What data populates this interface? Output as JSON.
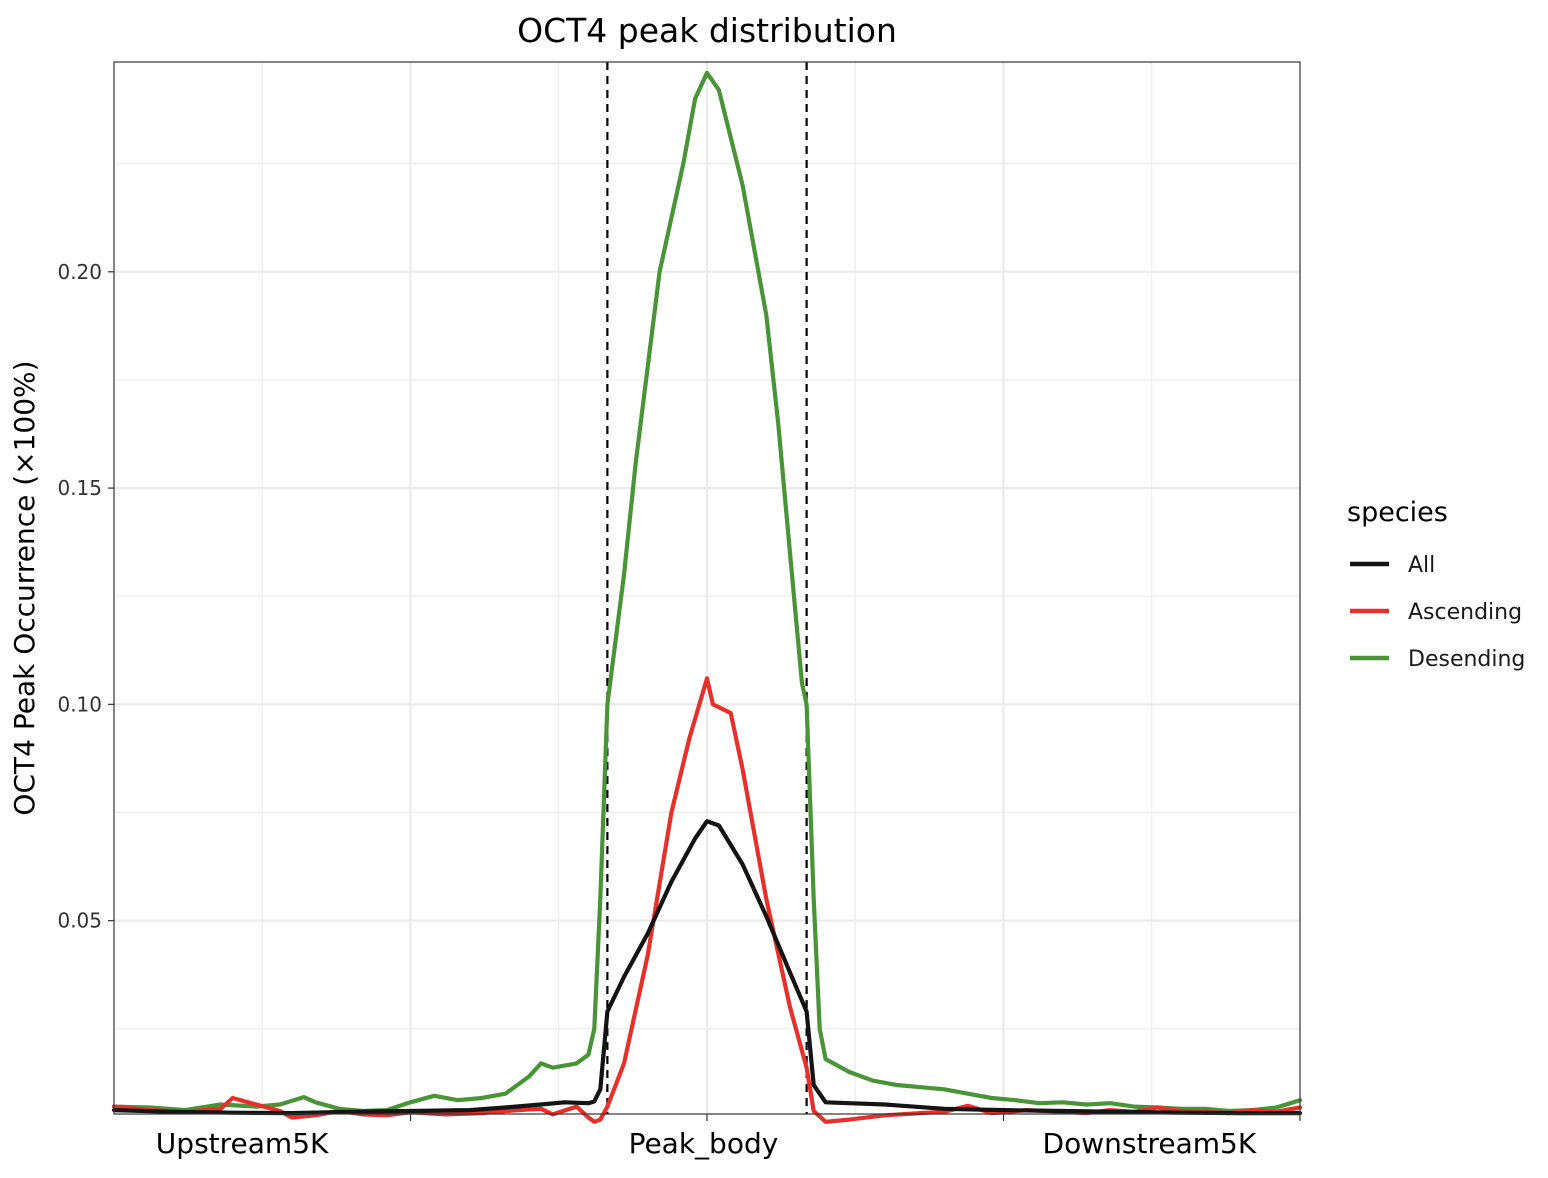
{
  "colors": {
    "all": "#141414",
    "ascending": "#e8302b",
    "desending": "#4a9438",
    "grid": "#ebebeb",
    "panel_border": "#333333"
  },
  "chart_data": {
    "type": "line",
    "title": "OCT4 peak distribution",
    "xlabel": "",
    "ylabel": "OCT4  Peak Occurrence (×100%)",
    "xlim": [
      0,
      1
    ],
    "ylim": [
      0.0053,
      0.2485
    ],
    "y_ticks": [
      0.05,
      0.1,
      0.15,
      0.2
    ],
    "y_tick_labels": [
      "0.05",
      "0.10",
      "0.15",
      "0.20"
    ],
    "x_ticks": [
      0.25,
      0.5,
      0.75,
      1.0
    ],
    "x_labels": [
      {
        "label": "Upstream5K",
        "x": 0.108
      },
      {
        "label": "Peak_body",
        "x": 0.497
      },
      {
        "label": "Downstream5K",
        "x": 0.873
      }
    ],
    "vlines": [
      0.416,
      0.584
    ],
    "grid": true,
    "legend": {
      "title": "species",
      "position": "right"
    },
    "series": [
      {
        "name": "All",
        "color_key": "all",
        "points": [
          [
            0.0,
            0.0062
          ],
          [
            0.05,
            0.0058
          ],
          [
            0.1,
            0.0056
          ],
          [
            0.15,
            0.0055
          ],
          [
            0.2,
            0.0058
          ],
          [
            0.25,
            0.006
          ],
          [
            0.3,
            0.0062
          ],
          [
            0.33,
            0.0068
          ],
          [
            0.36,
            0.0075
          ],
          [
            0.38,
            0.008
          ],
          [
            0.4,
            0.0078
          ],
          [
            0.405,
            0.0082
          ],
          [
            0.41,
            0.011
          ],
          [
            0.416,
            0.029
          ],
          [
            0.43,
            0.037
          ],
          [
            0.45,
            0.047
          ],
          [
            0.47,
            0.059
          ],
          [
            0.49,
            0.069
          ],
          [
            0.5,
            0.073
          ],
          [
            0.51,
            0.072
          ],
          [
            0.53,
            0.063
          ],
          [
            0.55,
            0.051
          ],
          [
            0.57,
            0.038
          ],
          [
            0.584,
            0.029
          ],
          [
            0.59,
            0.012
          ],
          [
            0.6,
            0.008
          ],
          [
            0.62,
            0.0078
          ],
          [
            0.65,
            0.0075
          ],
          [
            0.7,
            0.0065
          ],
          [
            0.75,
            0.0062
          ],
          [
            0.8,
            0.006
          ],
          [
            0.85,
            0.0058
          ],
          [
            0.9,
            0.0056
          ],
          [
            0.95,
            0.0055
          ],
          [
            1.0,
            0.0055
          ]
        ]
      },
      {
        "name": "Ascending",
        "color_key": "ascending",
        "points": [
          [
            0.0,
            0.007
          ],
          [
            0.03,
            0.0062
          ],
          [
            0.06,
            0.0058
          ],
          [
            0.09,
            0.0065
          ],
          [
            0.1,
            0.009
          ],
          [
            0.12,
            0.0075
          ],
          [
            0.14,
            0.006
          ],
          [
            0.15,
            0.0045
          ],
          [
            0.17,
            0.005
          ],
          [
            0.19,
            0.006
          ],
          [
            0.21,
            0.0052
          ],
          [
            0.23,
            0.005
          ],
          [
            0.25,
            0.0057
          ],
          [
            0.28,
            0.0052
          ],
          [
            0.31,
            0.0055
          ],
          [
            0.34,
            0.0062
          ],
          [
            0.36,
            0.0065
          ],
          [
            0.37,
            0.0052
          ],
          [
            0.39,
            0.007
          ],
          [
            0.4,
            0.0045
          ],
          [
            0.405,
            0.0035
          ],
          [
            0.41,
            0.004
          ],
          [
            0.416,
            0.007
          ],
          [
            0.43,
            0.017
          ],
          [
            0.45,
            0.042
          ],
          [
            0.47,
            0.075
          ],
          [
            0.485,
            0.092
          ],
          [
            0.5,
            0.106
          ],
          [
            0.505,
            0.1
          ],
          [
            0.52,
            0.098
          ],
          [
            0.53,
            0.085
          ],
          [
            0.55,
            0.055
          ],
          [
            0.57,
            0.03
          ],
          [
            0.584,
            0.016
          ],
          [
            0.59,
            0.006
          ],
          [
            0.6,
            0.0035
          ],
          [
            0.62,
            0.004
          ],
          [
            0.65,
            0.005
          ],
          [
            0.68,
            0.0055
          ],
          [
            0.7,
            0.0058
          ],
          [
            0.72,
            0.0072
          ],
          [
            0.74,
            0.0055
          ],
          [
            0.77,
            0.0062
          ],
          [
            0.8,
            0.0058
          ],
          [
            0.82,
            0.0055
          ],
          [
            0.84,
            0.0062
          ],
          [
            0.86,
            0.0058
          ],
          [
            0.88,
            0.0068
          ],
          [
            0.9,
            0.006
          ],
          [
            0.92,
            0.0058
          ],
          [
            0.94,
            0.0055
          ],
          [
            0.96,
            0.0062
          ],
          [
            0.98,
            0.0058
          ],
          [
            1.0,
            0.0068
          ]
        ]
      },
      {
        "name": "Desending",
        "color_key": "desending",
        "points": [
          [
            0.0,
            0.007
          ],
          [
            0.03,
            0.0068
          ],
          [
            0.06,
            0.0062
          ],
          [
            0.09,
            0.0075
          ],
          [
            0.12,
            0.007
          ],
          [
            0.14,
            0.0075
          ],
          [
            0.16,
            0.0092
          ],
          [
            0.17,
            0.008
          ],
          [
            0.19,
            0.0065
          ],
          [
            0.21,
            0.006
          ],
          [
            0.23,
            0.0062
          ],
          [
            0.25,
            0.008
          ],
          [
            0.27,
            0.0095
          ],
          [
            0.29,
            0.0085
          ],
          [
            0.31,
            0.009
          ],
          [
            0.33,
            0.01
          ],
          [
            0.35,
            0.014
          ],
          [
            0.36,
            0.017
          ],
          [
            0.37,
            0.016
          ],
          [
            0.39,
            0.017
          ],
          [
            0.4,
            0.019
          ],
          [
            0.405,
            0.025
          ],
          [
            0.41,
            0.055
          ],
          [
            0.416,
            0.1
          ],
          [
            0.43,
            0.13
          ],
          [
            0.44,
            0.156
          ],
          [
            0.45,
            0.178
          ],
          [
            0.46,
            0.2
          ],
          [
            0.48,
            0.225
          ],
          [
            0.49,
            0.24
          ],
          [
            0.5,
            0.246
          ],
          [
            0.51,
            0.242
          ],
          [
            0.53,
            0.22
          ],
          [
            0.55,
            0.19
          ],
          [
            0.56,
            0.165
          ],
          [
            0.57,
            0.135
          ],
          [
            0.58,
            0.105
          ],
          [
            0.584,
            0.1
          ],
          [
            0.59,
            0.055
          ],
          [
            0.595,
            0.025
          ],
          [
            0.6,
            0.018
          ],
          [
            0.62,
            0.015
          ],
          [
            0.64,
            0.013
          ],
          [
            0.66,
            0.012
          ],
          [
            0.68,
            0.0115
          ],
          [
            0.7,
            0.011
          ],
          [
            0.72,
            0.01
          ],
          [
            0.74,
            0.009
          ],
          [
            0.76,
            0.0085
          ],
          [
            0.78,
            0.0078
          ],
          [
            0.8,
            0.008
          ],
          [
            0.82,
            0.0075
          ],
          [
            0.84,
            0.0078
          ],
          [
            0.86,
            0.007
          ],
          [
            0.88,
            0.0068
          ],
          [
            0.9,
            0.0065
          ],
          [
            0.92,
            0.0065
          ],
          [
            0.94,
            0.006
          ],
          [
            0.96,
            0.0062
          ],
          [
            0.98,
            0.0068
          ],
          [
            1.0,
            0.0085
          ]
        ]
      }
    ]
  }
}
